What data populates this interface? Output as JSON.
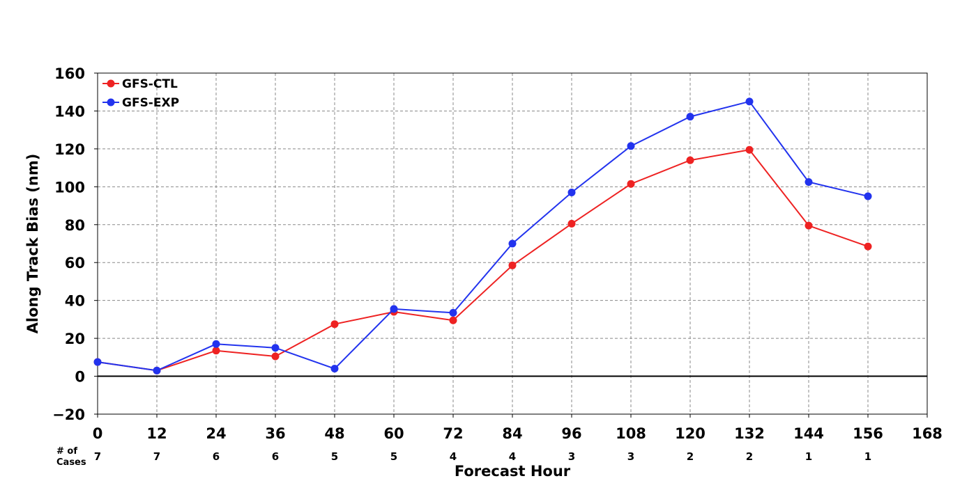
{
  "chart_data": {
    "type": "line",
    "xlabel": "Forecast Hour",
    "ylabel": "Along Track Bias (nm)",
    "xlim": [
      0,
      168
    ],
    "ylim": [
      -20,
      160
    ],
    "x_ticks": [
      0,
      12,
      24,
      36,
      48,
      60,
      72,
      84,
      96,
      108,
      120,
      132,
      144,
      156,
      168
    ],
    "y_ticks": [
      -20,
      0,
      20,
      40,
      60,
      80,
      100,
      120,
      140,
      160
    ],
    "y_tick_labels": [
      "−20",
      "0",
      "20",
      "40",
      "60",
      "80",
      "100",
      "120",
      "140",
      "160"
    ],
    "grid": true,
    "legend_position": "top-left",
    "x": [
      0,
      12,
      24,
      36,
      48,
      60,
      72,
      84,
      96,
      108,
      120,
      132,
      144,
      156
    ],
    "series": [
      {
        "name": "GFS-CTL",
        "color": "#ee2222",
        "values": [
          7.5,
          3.0,
          13.5,
          10.5,
          27.5,
          34.0,
          29.5,
          58.5,
          80.5,
          101.5,
          114.0,
          119.5,
          79.5,
          68.5
        ]
      },
      {
        "name": "GFS-EXP",
        "color": "#2233ee",
        "values": [
          7.5,
          3.0,
          17.0,
          15.0,
          4.0,
          35.5,
          33.5,
          70.0,
          97.0,
          121.5,
          137.0,
          145.0,
          102.5,
          95.0
        ]
      }
    ],
    "cases_title_line1": "# of",
    "cases_title_line2": "Cases",
    "cases": [
      "7",
      "7",
      "6",
      "6",
      "5",
      "5",
      "4",
      "4",
      "3",
      "3",
      "2",
      "2",
      "1",
      "1"
    ]
  }
}
